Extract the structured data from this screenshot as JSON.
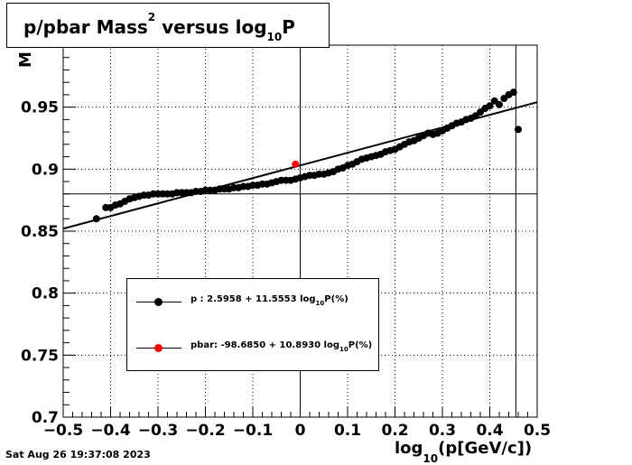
{
  "title": {
    "main": "p/pbar Mass",
    "sup": "2",
    "mid": " versus log",
    "sub": "10",
    "end": "P"
  },
  "xlabel": {
    "pre": "log",
    "sub": "10",
    "post": "(p[GeV/c])"
  },
  "ylabel": "M",
  "datestamp": "Sat Aug 26 19:37:08 2023",
  "legend": [
    {
      "label": "p   : 2.5958 + 11.5553 log",
      "sub": "10",
      "suffix": "P(%)",
      "color": "#000000"
    },
    {
      "label": "pbar: -98.6850 + 10.8930 log",
      "sub": "10",
      "suffix": "P(%)",
      "color": "#ff0000"
    }
  ],
  "chart_data": {
    "type": "scatter",
    "xlim": [
      -0.5,
      0.5
    ],
    "ylim": [
      0.7,
      1.0
    ],
    "x_ticks": [
      -0.5,
      -0.4,
      -0.3,
      -0.2,
      -0.1,
      0,
      0.1,
      0.2,
      0.3,
      0.4,
      0.5
    ],
    "x_tick_labels": [
      "−0.5",
      "−0.4",
      "−0.3",
      "−0.2",
      "−0.1",
      "0",
      "0.1",
      "0.2",
      "0.3",
      "0.4",
      "0.5"
    ],
    "y_ticks": [
      0.7,
      0.75,
      0.8,
      0.85,
      0.9,
      0.95
    ],
    "y_tick_labels": [
      "0.7",
      "0.75",
      "0.8",
      "0.85",
      "0.9",
      "0.95"
    ],
    "grid": true,
    "colors": {
      "p": "#000000",
      "pbar": "#ff0000"
    },
    "series": [
      {
        "name": "p",
        "x": [
          -0.43,
          -0.41,
          -0.4,
          -0.39,
          -0.38,
          -0.37,
          -0.36,
          -0.35,
          -0.34,
          -0.33,
          -0.32,
          -0.31,
          -0.3,
          -0.29,
          -0.28,
          -0.27,
          -0.26,
          -0.25,
          -0.24,
          -0.23,
          -0.22,
          -0.21,
          -0.2,
          -0.19,
          -0.18,
          -0.17,
          -0.16,
          -0.15,
          -0.14,
          -0.13,
          -0.12,
          -0.11,
          -0.1,
          -0.09,
          -0.08,
          -0.07,
          -0.06,
          -0.05,
          -0.04,
          -0.03,
          -0.02,
          -0.01,
          0.0,
          0.01,
          0.02,
          0.03,
          0.04,
          0.05,
          0.06,
          0.07,
          0.08,
          0.09,
          0.1,
          0.11,
          0.12,
          0.13,
          0.14,
          0.15,
          0.16,
          0.17,
          0.18,
          0.19,
          0.2,
          0.21,
          0.22,
          0.23,
          0.24,
          0.25,
          0.26,
          0.27,
          0.28,
          0.29,
          0.3,
          0.31,
          0.32,
          0.33,
          0.34,
          0.35,
          0.36,
          0.37,
          0.38,
          0.39,
          0.4,
          0.41,
          0.42,
          0.43,
          0.44,
          0.45,
          0.46
        ],
        "y": [
          0.86,
          0.869,
          0.869,
          0.871,
          0.872,
          0.874,
          0.876,
          0.877,
          0.878,
          0.879,
          0.879,
          0.88,
          0.88,
          0.88,
          0.88,
          0.88,
          0.881,
          0.881,
          0.881,
          0.881,
          0.882,
          0.882,
          0.883,
          0.883,
          0.883,
          0.884,
          0.884,
          0.884,
          0.885,
          0.885,
          0.886,
          0.886,
          0.887,
          0.887,
          0.888,
          0.888,
          0.889,
          0.89,
          0.891,
          0.891,
          0.891,
          0.892,
          0.893,
          0.894,
          0.895,
          0.895,
          0.896,
          0.896,
          0.897,
          0.898,
          0.9,
          0.901,
          0.903,
          0.904,
          0.906,
          0.908,
          0.909,
          0.91,
          0.911,
          0.912,
          0.914,
          0.915,
          0.916,
          0.918,
          0.92,
          0.922,
          0.923,
          0.925,
          0.927,
          0.929,
          0.928,
          0.929,
          0.931,
          0.933,
          0.935,
          0.937,
          0.938,
          0.94,
          0.941,
          0.943,
          0.946,
          0.949,
          0.951,
          0.955,
          0.952,
          0.957,
          0.96,
          0.962,
          0.932
        ]
      },
      {
        "name": "pbar",
        "x": [
          -0.01
        ],
        "y": [
          0.904
        ]
      }
    ],
    "fit_lines": [
      {
        "x": [
          -0.5,
          0.5
        ],
        "y": [
          0.852,
          0.954
        ]
      }
    ],
    "ref_lines": {
      "horizontal_y": 0.88,
      "vertical_x": [
        0,
        0.455
      ]
    }
  }
}
